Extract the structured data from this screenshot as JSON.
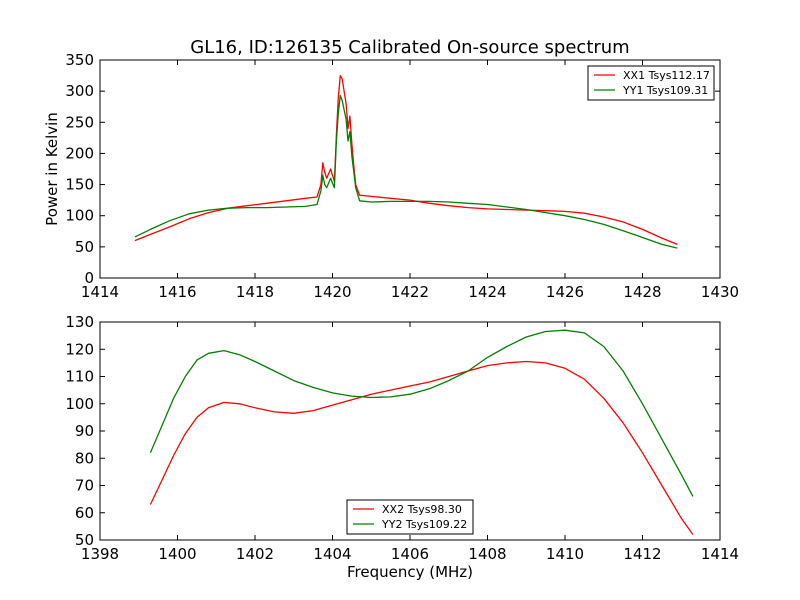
{
  "figure": {
    "title": "GL16, ID:126135 Calibrated On-source spectrum",
    "background": "#ffffff"
  },
  "chart_data": [
    {
      "type": "line",
      "title": "GL16, ID:126135 Calibrated On-source spectrum",
      "xlabel": "",
      "ylabel": "Power in Kelvin",
      "xlim": [
        1414,
        1430
      ],
      "ylim": [
        0,
        350
      ],
      "xticks": [
        1414,
        1416,
        1418,
        1420,
        1422,
        1424,
        1426,
        1428,
        1430
      ],
      "yticks": [
        0,
        50,
        100,
        150,
        200,
        250,
        300,
        350
      ],
      "grid": false,
      "legend_position": "top-right",
      "series": [
        {
          "name": "XX1 Tsys112.17",
          "color": "#ff0000",
          "x": [
            1414.9,
            1415.3,
            1415.8,
            1416.3,
            1416.8,
            1417.3,
            1417.8,
            1418.3,
            1418.8,
            1419.3,
            1419.6,
            1419.7,
            1419.75,
            1419.8,
            1419.85,
            1419.95,
            1420.05,
            1420.1,
            1420.15,
            1420.2,
            1420.25,
            1420.3,
            1420.35,
            1420.4,
            1420.45,
            1420.5,
            1420.55,
            1420.6,
            1420.7,
            1421.0,
            1421.5,
            1422.0,
            1422.5,
            1423.0,
            1423.5,
            1424.0,
            1424.5,
            1425.0,
            1425.5,
            1426.0,
            1426.5,
            1427.0,
            1427.5,
            1428.0,
            1428.5,
            1428.9
          ],
          "y": [
            60,
            70,
            82,
            95,
            105,
            112,
            116,
            120,
            124,
            128,
            130,
            150,
            185,
            170,
            160,
            175,
            155,
            230,
            290,
            325,
            320,
            300,
            280,
            240,
            260,
            215,
            180,
            150,
            133,
            131,
            128,
            125,
            120,
            116,
            113,
            111,
            110,
            109,
            108,
            107,
            104,
            98,
            90,
            78,
            64,
            54
          ]
        },
        {
          "name": "YY1 Tsys109.31",
          "color": "#008000",
          "x": [
            1414.9,
            1415.3,
            1415.8,
            1416.3,
            1416.8,
            1417.3,
            1417.8,
            1418.3,
            1418.8,
            1419.3,
            1419.6,
            1419.7,
            1419.75,
            1419.8,
            1419.85,
            1419.95,
            1420.05,
            1420.1,
            1420.15,
            1420.2,
            1420.25,
            1420.3,
            1420.35,
            1420.4,
            1420.45,
            1420.5,
            1420.55,
            1420.6,
            1420.7,
            1421.0,
            1421.5,
            1422.0,
            1422.5,
            1423.0,
            1423.5,
            1424.0,
            1424.5,
            1425.0,
            1425.5,
            1426.0,
            1426.5,
            1427.0,
            1427.5,
            1428.0,
            1428.5,
            1428.9
          ],
          "y": [
            66,
            78,
            92,
            103,
            109,
            112,
            113,
            113,
            114,
            115,
            118,
            140,
            165,
            150,
            145,
            160,
            145,
            220,
            265,
            293,
            285,
            270,
            255,
            220,
            235,
            195,
            170,
            145,
            124,
            122,
            123,
            123,
            123,
            122,
            120,
            118,
            114,
            110,
            105,
            100,
            94,
            86,
            76,
            65,
            54,
            48
          ]
        }
      ]
    },
    {
      "type": "line",
      "title": "",
      "xlabel": "Frequency (MHz)",
      "ylabel": "",
      "xlim": [
        1398,
        1414
      ],
      "ylim": [
        50,
        130
      ],
      "xticks": [
        1398,
        1400,
        1402,
        1404,
        1406,
        1408,
        1410,
        1412,
        1414
      ],
      "yticks": [
        50,
        60,
        70,
        80,
        90,
        100,
        110,
        120,
        130
      ],
      "grid": false,
      "legend_position": "bottom-center",
      "series": [
        {
          "name": "XX2 Tsys98.30",
          "color": "#ff0000",
          "x": [
            1399.3,
            1399.6,
            1399.9,
            1400.2,
            1400.5,
            1400.8,
            1401.2,
            1401.6,
            1402.0,
            1402.5,
            1403.0,
            1403.5,
            1404.0,
            1404.5,
            1405.0,
            1405.5,
            1406.0,
            1406.5,
            1407.0,
            1407.5,
            1408.0,
            1408.5,
            1409.0,
            1409.5,
            1410.0,
            1410.5,
            1411.0,
            1411.5,
            1412.0,
            1412.5,
            1413.0,
            1413.3
          ],
          "y": [
            63,
            72,
            81,
            89,
            95,
            98.5,
            100.5,
            100,
            98.5,
            97,
            96.5,
            97.5,
            99.5,
            101.5,
            103.5,
            105,
            106.5,
            108,
            110,
            112,
            114,
            115,
            115.5,
            115,
            113,
            109,
            102,
            93,
            82,
            70,
            58,
            52
          ]
        },
        {
          "name": "YY2 Tsys109.22",
          "color": "#008000",
          "x": [
            1399.3,
            1399.6,
            1399.9,
            1400.2,
            1400.5,
            1400.8,
            1401.2,
            1401.6,
            1402.0,
            1402.5,
            1403.0,
            1403.5,
            1404.0,
            1404.5,
            1405.0,
            1405.5,
            1406.0,
            1406.5,
            1407.0,
            1407.5,
            1408.0,
            1408.5,
            1409.0,
            1409.5,
            1410.0,
            1410.5,
            1411.0,
            1411.5,
            1412.0,
            1412.5,
            1413.0,
            1413.3
          ],
          "y": [
            82,
            92,
            102,
            110,
            116,
            118.5,
            119.5,
            118,
            115.5,
            112,
            108.5,
            106,
            104,
            102.8,
            102.3,
            102.5,
            103.5,
            105.5,
            108.5,
            112,
            117,
            121,
            124.5,
            126.5,
            127,
            126,
            121,
            112,
            100,
            87,
            74,
            66
          ]
        }
      ]
    }
  ]
}
